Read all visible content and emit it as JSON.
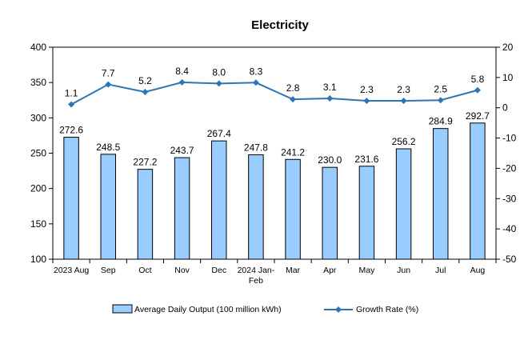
{
  "chart_data": {
    "type": "bar",
    "title": "Electricity",
    "categories": [
      "2023 Aug",
      "Sep",
      "Oct",
      "Nov",
      "Dec",
      "2024 Jan-Feb",
      "Mar",
      "Apr",
      "May",
      "Jun",
      "Jul",
      "Aug"
    ],
    "series": [
      {
        "name": "Average Daily Output (100 million kWh)",
        "type": "bar",
        "axis": "left",
        "values": [
          272.6,
          248.5,
          227.2,
          243.7,
          267.4,
          247.8,
          241.2,
          230.0,
          231.6,
          256.2,
          284.9,
          292.7
        ],
        "labels": [
          "272.6",
          "248.5",
          "227.2",
          "243.7",
          "267.4",
          "247.8",
          "241.2",
          "230.0",
          "231.6",
          "256.2",
          "284.9",
          "292.7"
        ]
      },
      {
        "name": "Growth Rate (%)",
        "type": "line",
        "axis": "right",
        "values": [
          1.1,
          7.7,
          5.2,
          8.4,
          8.0,
          8.3,
          2.8,
          3.1,
          2.3,
          2.3,
          2.5,
          5.8
        ],
        "labels": [
          "1.1",
          "7.7",
          "5.2",
          "8.4",
          "8.0",
          "8.3",
          "2.8",
          "3.1",
          "2.3",
          "2.3",
          "2.5",
          "5.8"
        ]
      }
    ],
    "y_left": {
      "lim": [
        100,
        400
      ],
      "ticks": [
        100,
        150,
        200,
        250,
        300,
        350,
        400
      ]
    },
    "y_right": {
      "lim": [
        -50,
        20
      ],
      "ticks": [
        -50,
        -40,
        -30,
        -20,
        -10,
        0,
        10,
        20
      ]
    },
    "grid": false,
    "legend_position": "bottom",
    "colors": {
      "bar_fill": "#99ccff",
      "bar_stroke": "#000000",
      "line": "#2e75b6"
    }
  }
}
